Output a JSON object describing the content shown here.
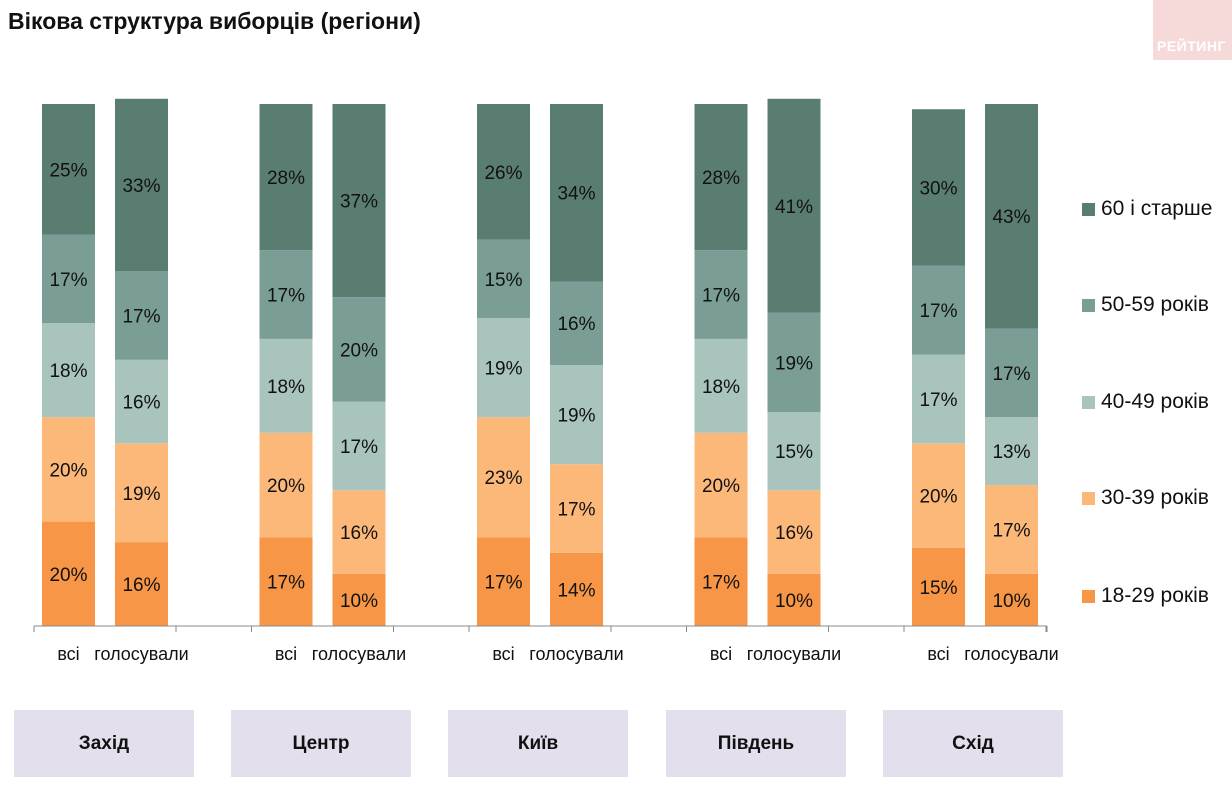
{
  "title": "Вікова структура виборців (регіони)",
  "logo_text": "РЕЙТИНГ",
  "chart_data": {
    "type": "bar",
    "stacked": true,
    "unit": "%",
    "ylim": [
      0,
      100
    ],
    "groups": [
      "Захід",
      "Центр",
      "Київ",
      "Південь",
      "Схід"
    ],
    "bar_labels": [
      "всі",
      "голосували"
    ],
    "series": [
      {
        "name": "18-29 років",
        "color": "#f79646",
        "values": [
          [
            20,
            16
          ],
          [
            17,
            10
          ],
          [
            17,
            14
          ],
          [
            17,
            10
          ],
          [
            15,
            10
          ]
        ]
      },
      {
        "name": "30-39 років",
        "color": "#fbb879",
        "values": [
          [
            20,
            19
          ],
          [
            20,
            16
          ],
          [
            23,
            17
          ],
          [
            20,
            16
          ],
          [
            20,
            17
          ]
        ]
      },
      {
        "name": "40-49 років",
        "color": "#a9c3bd",
        "values": [
          [
            18,
            16
          ],
          [
            18,
            17
          ],
          [
            19,
            19
          ],
          [
            18,
            15
          ],
          [
            17,
            13
          ]
        ]
      },
      {
        "name": "50-59 років",
        "color": "#7a9e95",
        "values": [
          [
            17,
            17
          ],
          [
            17,
            20
          ],
          [
            15,
            16
          ],
          [
            17,
            19
          ],
          [
            17,
            17
          ]
        ]
      },
      {
        "name": "60 і старше",
        "color": "#5a7d72",
        "values": [
          [
            25,
            33
          ],
          [
            28,
            37
          ],
          [
            26,
            34
          ],
          [
            28,
            41
          ],
          [
            30,
            43
          ]
        ]
      }
    ],
    "legend_position": "right",
    "grid": false
  }
}
